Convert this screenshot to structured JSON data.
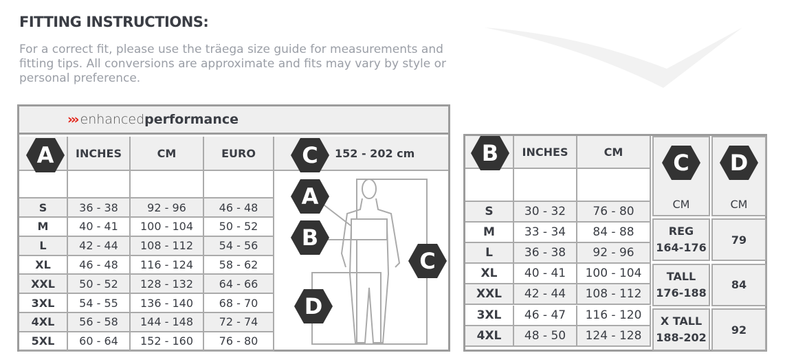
{
  "title": "FITTING INSTRUCTIONS:",
  "intro": "For a correct fit, please use the träega size guide for measurements and fitting tips. All conversions are approximate and fits may vary by style or personal preference.",
  "brand": {
    "arrows": "›››",
    "light": "enhanced",
    "bold": "performance"
  },
  "left_table": {
    "badge": "A",
    "columns": [
      "INCHES",
      "CM",
      "EURO"
    ],
    "height_badge": "C",
    "height_range": "152 - 202 cm",
    "figure_badges": [
      "A",
      "B",
      "C",
      "D"
    ],
    "rows": [
      {
        "size": "S",
        "inches": "36 - 38",
        "cm": "92 - 96",
        "euro": "46 - 48"
      },
      {
        "size": "M",
        "inches": "40 - 41",
        "cm": "100 - 104",
        "euro": "50 - 52"
      },
      {
        "size": "L",
        "inches": "42 - 44",
        "cm": "108 - 112",
        "euro": "54 - 56"
      },
      {
        "size": "XL",
        "inches": "46 - 48",
        "cm": "116 - 124",
        "euro": "58 - 62"
      },
      {
        "size": "XXL",
        "inches": "50 - 52",
        "cm": "128 - 132",
        "euro": "64 - 66"
      },
      {
        "size": "3XL",
        "inches": "54 - 55",
        "cm": "136 - 140",
        "euro": "68 - 70"
      },
      {
        "size": "4XL",
        "inches": "56 - 58",
        "cm": "144 - 148",
        "euro": "72 - 74"
      },
      {
        "size": "5XL",
        "inches": "60 - 64",
        "cm": "152 - 160",
        "euro": "76 - 80"
      }
    ]
  },
  "right_table": {
    "badge": "B",
    "columns": [
      "INCHES",
      "CM"
    ],
    "badge_c": "C",
    "badge_d": "D",
    "unit_c": "CM",
    "unit_d": "CM",
    "rows": [
      {
        "size": "S",
        "inches": "30 - 32",
        "cm": "76 - 80"
      },
      {
        "size": "M",
        "inches": "33 - 34",
        "cm": "84 - 88"
      },
      {
        "size": "L",
        "inches": "36 - 38",
        "cm": "92 - 96"
      },
      {
        "size": "XL",
        "inches": "40 - 41",
        "cm": "100 - 104"
      },
      {
        "size": "XXL",
        "inches": "42 - 44",
        "cm": "108 - 112"
      },
      {
        "size": "3XL",
        "inches": "46 - 47",
        "cm": "116 - 120"
      },
      {
        "size": "4XL",
        "inches": "48 - 50",
        "cm": "124 - 128"
      }
    ],
    "lengths": [
      {
        "label": "REG",
        "range": "164-176",
        "d": "79"
      },
      {
        "label": "TALL",
        "range": "176-188",
        "d": "84"
      },
      {
        "label": "X TALL",
        "range": "188-202",
        "d": "92"
      }
    ]
  },
  "colors": {
    "accent": "#e3261b",
    "badge": "#333333",
    "border": "#9c9c9c"
  }
}
